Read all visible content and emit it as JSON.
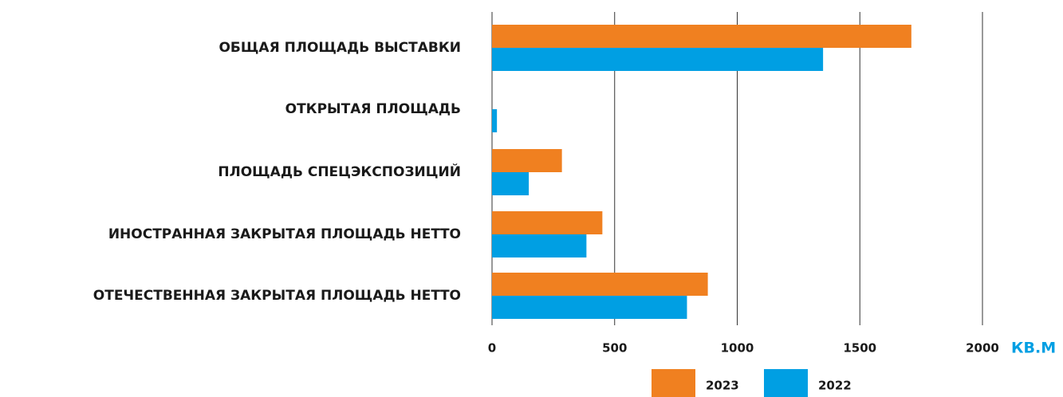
{
  "chart_data": {
    "type": "bar",
    "orientation": "horizontal",
    "categories": [
      "ОБЩАЯ ПЛОЩАДЬ ВЫСТАВКИ",
      "ОТКРЫТАЯ ПЛОЩАДЬ",
      "ПЛОЩАДЬ СПЕЦЭКСПОЗИЦИЙ",
      "ИНОСТРАННАЯ ЗАКРЫТАЯ ПЛОЩАДЬ НЕТТО",
      "ОТЕЧЕСТВЕННАЯ ЗАКРЫТАЯ ПЛОЩАДЬ НЕТТО"
    ],
    "series": [
      {
        "name": "2023",
        "color": "#f08020",
        "values": [
          1710,
          null,
          285,
          450,
          880
        ]
      },
      {
        "name": "2022",
        "color": "#009fe3",
        "values": [
          1350,
          20,
          150,
          385,
          795
        ]
      }
    ],
    "x_label": "КВ.М",
    "xlim": [
      0,
      2000
    ],
    "xticks": [
      0,
      500,
      1000,
      1500,
      2000
    ],
    "grid": true
  }
}
